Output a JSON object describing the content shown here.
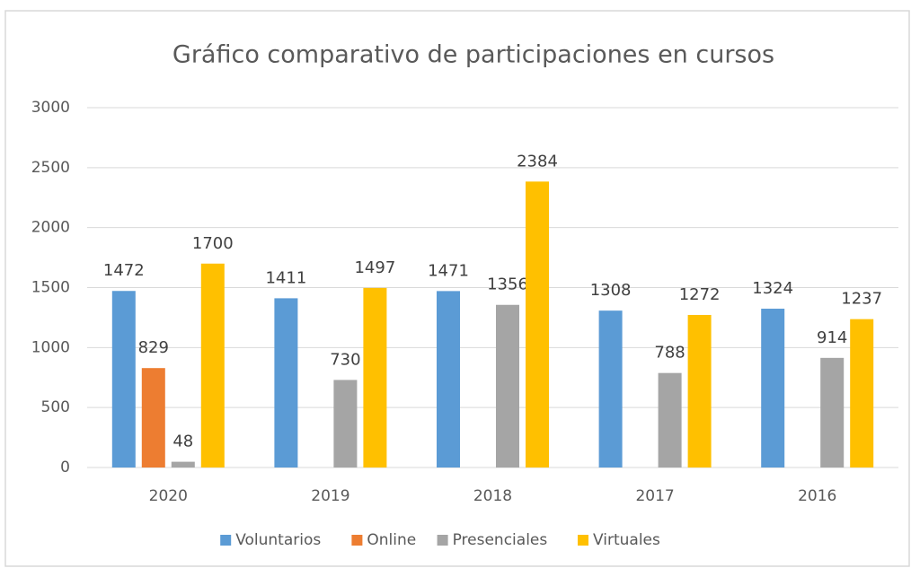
{
  "chart_data": {
    "type": "bar",
    "title": "Gráfico comparativo de participaciones en cursos",
    "categories": [
      "2020",
      "2019",
      "2018",
      "2017",
      "2016"
    ],
    "series": [
      {
        "name": "Voluntarios",
        "color": "#5b9bd5",
        "values": [
          1472,
          1411,
          1471,
          1308,
          1324
        ]
      },
      {
        "name": "Online",
        "color": "#ed7d31",
        "values": [
          829,
          null,
          null,
          null,
          null
        ]
      },
      {
        "name": "Presenciales",
        "color": "#a5a5a5",
        "values": [
          48,
          730,
          1356,
          788,
          914
        ]
      },
      {
        "name": "Virtuales",
        "color": "#ffc000",
        "values": [
          1700,
          1497,
          2384,
          1272,
          1237
        ]
      }
    ],
    "ylim": [
      0,
      3000
    ],
    "yticks": [
      0,
      500,
      1000,
      1500,
      2000,
      2500,
      3000
    ],
    "grid": true,
    "legend": "bottom"
  }
}
